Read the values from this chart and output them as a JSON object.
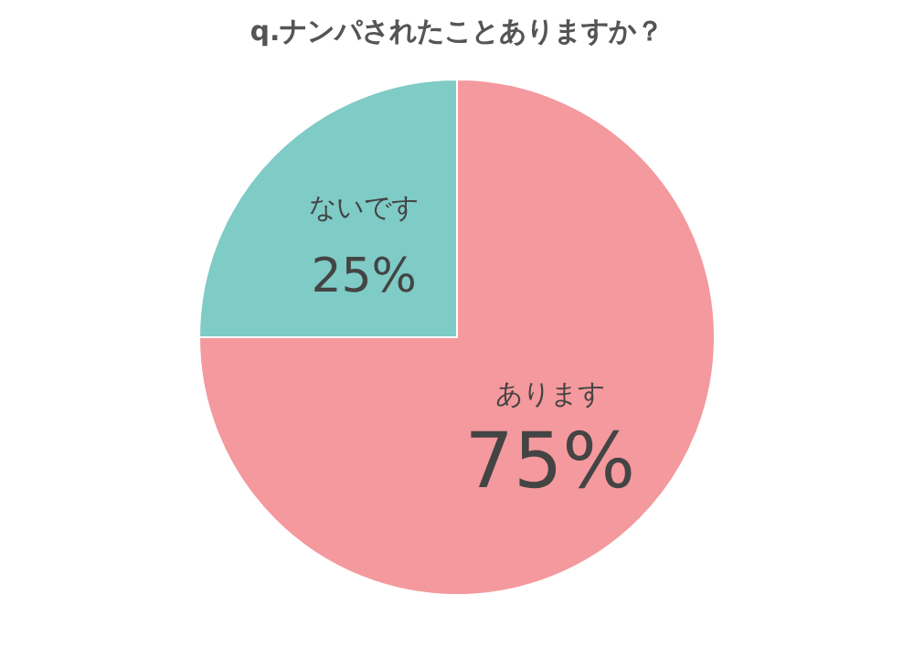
{
  "chart_data": {
    "type": "pie",
    "title": "q.ナンパされたことありますか？",
    "categories": [
      "あります",
      "ないです"
    ],
    "values": [
      75,
      25
    ],
    "value_labels": [
      "75%",
      "25%"
    ],
    "colors": [
      "#f4999d",
      "#7fcbc6"
    ]
  }
}
